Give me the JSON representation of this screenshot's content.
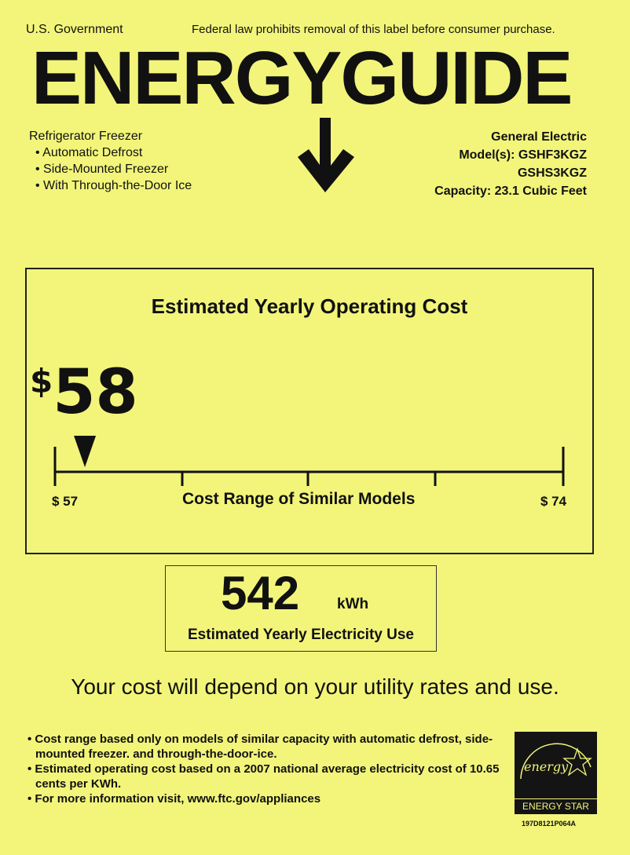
{
  "header": {
    "government": "U.S. Government",
    "notice": "Federal law prohibits removal of this label before consumer purchase.",
    "logo_text": "ENERGYGUIDE"
  },
  "product": {
    "type": "Refrigerator Freezer",
    "features": [
      "Automatic Defrost",
      "Side-Mounted Freezer",
      "With Through-the-Door Ice"
    ]
  },
  "manufacturer": {
    "brand": "General Electric",
    "models_label": "Model(s): GSHF3KGZ",
    "model2": "GSHS3KGZ",
    "capacity": "Capacity: 23.1 Cubic Feet"
  },
  "cost": {
    "title": "Estimated Yearly Operating Cost",
    "currency": "$",
    "value": "58",
    "range_min_label": "$ 57",
    "range_max_label": "$ 74",
    "range_title": "Cost Range of Similar Models",
    "range_min": 57,
    "range_max": 74,
    "marker_value": 58
  },
  "electricity": {
    "value": "542",
    "unit": "kWh",
    "label": "Estimated Yearly Electricity Use"
  },
  "disclaimer": "Your cost will depend on your utility rates and use.",
  "notes": [
    "Cost range based only on models of similar capacity with automatic defrost, side-mounted freezer. and through-the-door-ice.",
    "Estimated operating cost based on a 2007 national average electricity cost of 10.65 cents per KWh.",
    "For more information visit, www.ftc.gov/appliances"
  ],
  "energy_star": {
    "script": "energy",
    "label": "ENERGY STAR"
  },
  "code": "197D8121P064A",
  "colors": {
    "background": "#f2f57a",
    "ink": "#111111"
  }
}
